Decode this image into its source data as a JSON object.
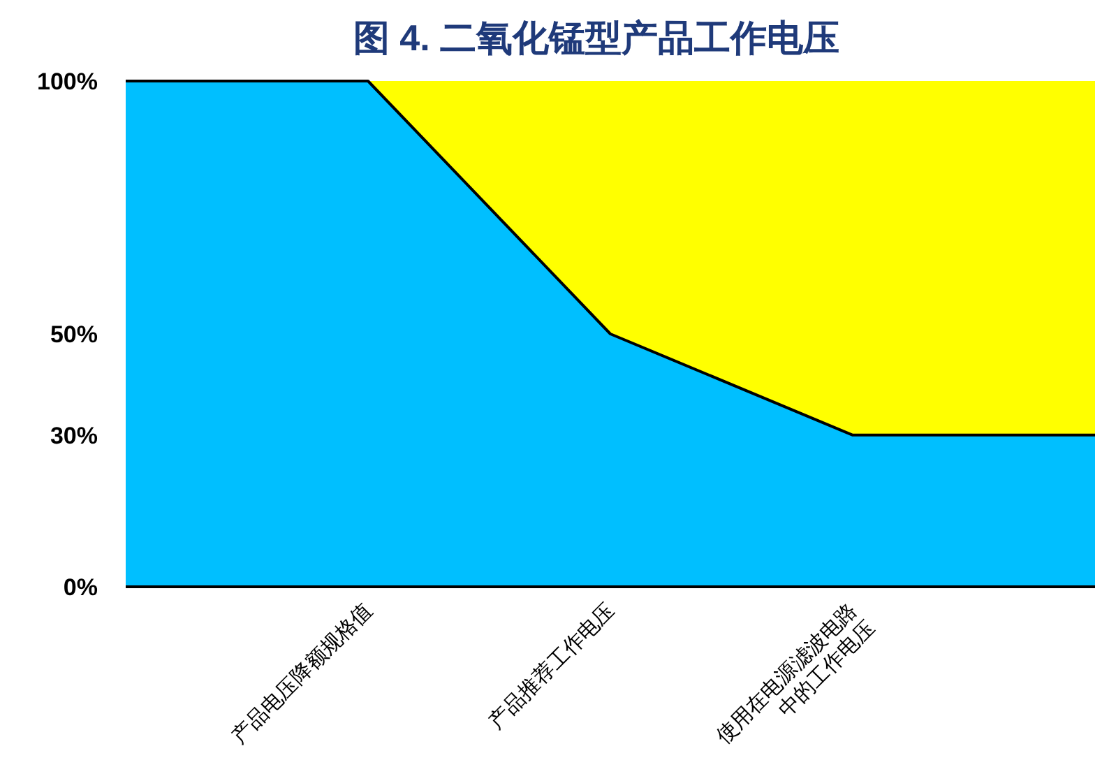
{
  "chart_data": {
    "type": "area",
    "title": "图 4.  二氧化锰型产品工作电压",
    "stacked": true,
    "categories": [
      null,
      "产品电压降额规格值",
      "产品推荐工作电压",
      "使用在电源滤波电路\n中的工作电压",
      null
    ],
    "series": [
      {
        "color": "#00bfff",
        "values": [
          100,
          100,
          50,
          30,
          30
        ]
      },
      {
        "color": "#ffff00",
        "values": [
          0,
          0,
          50,
          70,
          70
        ]
      }
    ],
    "ylim": [
      0,
      100
    ],
    "yticks": [
      {
        "value": 0,
        "label": "0%"
      },
      {
        "value": 30,
        "label": "30%"
      },
      {
        "value": 50,
        "label": "50%"
      },
      {
        "value": 100,
        "label": "100%"
      }
    ],
    "grid": false
  }
}
